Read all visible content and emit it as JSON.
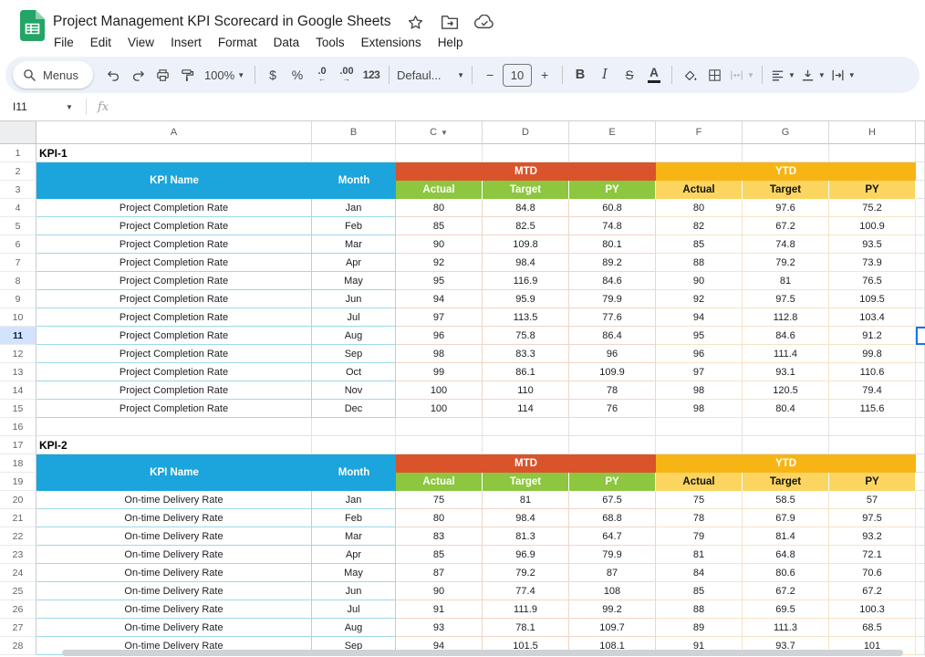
{
  "app": {
    "title": "Project Management KPI Scorecard in Google Sheets",
    "menu_items": [
      "File",
      "Edit",
      "View",
      "Insert",
      "Format",
      "Data",
      "Tools",
      "Extensions",
      "Help"
    ]
  },
  "toolbar": {
    "search_label": "Menus",
    "zoom": "100%",
    "currency": "$",
    "percent": "%",
    "decrease_decimal": ".0",
    "decrease_arrow": "←",
    "increase_decimal": ".00",
    "increase_arrow": "→",
    "number_format": "123",
    "font_name": "Defaul...",
    "minus": "−",
    "font_size": "10",
    "plus": "+",
    "bold": "B",
    "italic": "I",
    "strikethrough": "S",
    "text_color": "A"
  },
  "formula_bar": {
    "cell_ref": "I11",
    "fx_label": "fx"
  },
  "grid": {
    "column_headers": [
      "A",
      "B",
      "C",
      "D",
      "E",
      "F",
      "G",
      "H"
    ],
    "dropdown_column": "C",
    "selected_row": 11,
    "selected_cell": "I11"
  },
  "scorecard_header": {
    "kpi_name": "KPI Name",
    "month": "Month",
    "mtd": "MTD",
    "ytd": "YTD",
    "sub_columns": [
      "Actual",
      "Target",
      "PY"
    ]
  },
  "kpi1": {
    "label": "KPI-1",
    "kpi_name": "Project Completion Rate",
    "rows": [
      {
        "month": "Jan",
        "values": [
          80,
          84.8,
          60.8,
          80,
          97.6,
          75.2
        ]
      },
      {
        "month": "Feb",
        "values": [
          85,
          82.5,
          74.8,
          82,
          67.2,
          100.9
        ]
      },
      {
        "month": "Mar",
        "values": [
          90,
          109.8,
          80.1,
          85,
          74.8,
          93.5
        ]
      },
      {
        "month": "Apr",
        "values": [
          92,
          98.4,
          89.2,
          88,
          79.2,
          73.9
        ]
      },
      {
        "month": "May",
        "values": [
          95,
          116.9,
          84.6,
          90,
          81,
          76.5
        ]
      },
      {
        "month": "Jun",
        "values": [
          94,
          95.9,
          79.9,
          92,
          97.5,
          109.5
        ]
      },
      {
        "month": "Jul",
        "values": [
          97,
          113.5,
          77.6,
          94,
          112.8,
          103.4
        ]
      },
      {
        "month": "Aug",
        "values": [
          96,
          75.8,
          86.4,
          95,
          84.6,
          91.2
        ]
      },
      {
        "month": "Sep",
        "values": [
          98,
          83.3,
          96,
          96,
          111.4,
          99.8
        ]
      },
      {
        "month": "Oct",
        "values": [
          99,
          86.1,
          109.9,
          97,
          93.1,
          110.6
        ]
      },
      {
        "month": "Nov",
        "values": [
          100,
          110,
          78,
          98,
          120.5,
          79.4
        ]
      },
      {
        "month": "Dec",
        "values": [
          100,
          114,
          76,
          98,
          80.4,
          115.6
        ]
      }
    ]
  },
  "kpi2": {
    "label": "KPI-2",
    "kpi_name": "On-time Delivery Rate",
    "rows": [
      {
        "month": "Jan",
        "values": [
          75,
          81,
          67.5,
          75,
          58.5,
          57
        ]
      },
      {
        "month": "Feb",
        "values": [
          80,
          98.4,
          68.8,
          78,
          67.9,
          97.5
        ]
      },
      {
        "month": "Mar",
        "values": [
          83,
          81.3,
          64.7,
          79,
          81.4,
          93.2
        ]
      },
      {
        "month": "Apr",
        "values": [
          85,
          96.9,
          79.9,
          81,
          64.8,
          72.1
        ]
      },
      {
        "month": "May",
        "values": [
          87,
          79.2,
          87,
          84,
          80.6,
          70.6
        ]
      },
      {
        "month": "Jun",
        "values": [
          90,
          77.4,
          108,
          85,
          67.2,
          67.2
        ]
      },
      {
        "month": "Jul",
        "values": [
          91,
          111.9,
          99.2,
          88,
          69.5,
          100.3
        ]
      },
      {
        "month": "Aug",
        "values": [
          93,
          78.1,
          109.7,
          89,
          111.3,
          68.5
        ]
      },
      {
        "month": "Sep",
        "values": [
          94,
          101.5,
          108.1,
          91,
          93.7,
          101
        ]
      }
    ]
  },
  "colors": {
    "blue_header": "#1BA5DC",
    "mtd_header": "#D9532B",
    "mtd_sub": "#8DC63F",
    "ytd_header": "#F7B515",
    "ytd_sub": "#FBD55F",
    "selection": "#1A73E8",
    "selected_row_header": "#D3E3FD"
  }
}
